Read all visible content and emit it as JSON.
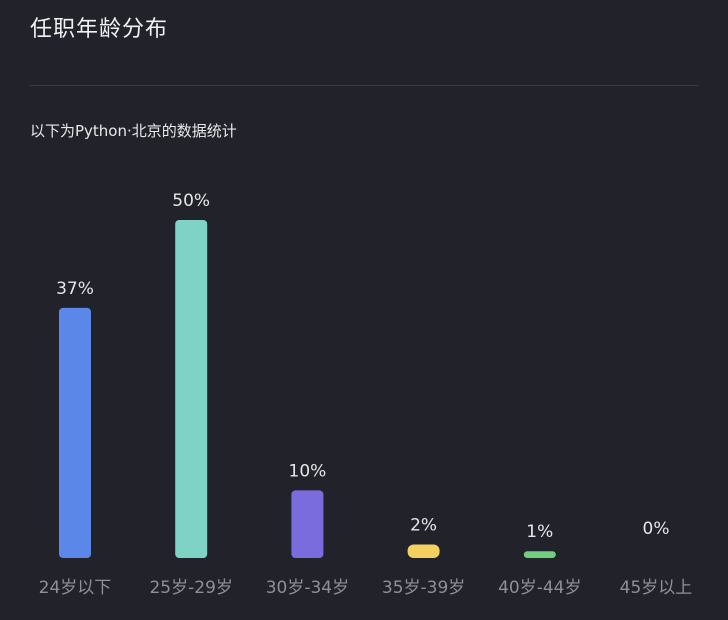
{
  "header": {
    "title": "任职年龄分布",
    "subtitle": "以下为Python·北京的数据统计"
  },
  "colors": {
    "background": "#22232a",
    "label": "#e6e6ea",
    "tick": "#8d8f99"
  },
  "chart_data": {
    "type": "bar",
    "title": "任职年龄分布",
    "subtitle": "以下为Python·北京的数据统计",
    "categories": [
      "24岁以下",
      "25岁-29岁",
      "30岁-34岁",
      "35岁-39岁",
      "40岁-44岁",
      "45岁以上"
    ],
    "values": [
      37,
      50,
      10,
      2,
      1,
      0
    ],
    "data_labels": [
      "37%",
      "50%",
      "10%",
      "2%",
      "1%",
      "0%"
    ],
    "bar_colors": [
      "#5a87e8",
      "#7fd3c6",
      "#7b6cde",
      "#f3d060",
      "#6fce7f",
      "#8c8c8c"
    ],
    "unit": "%",
    "ylim": [
      0,
      50
    ],
    "grid": false,
    "legend": "none"
  }
}
